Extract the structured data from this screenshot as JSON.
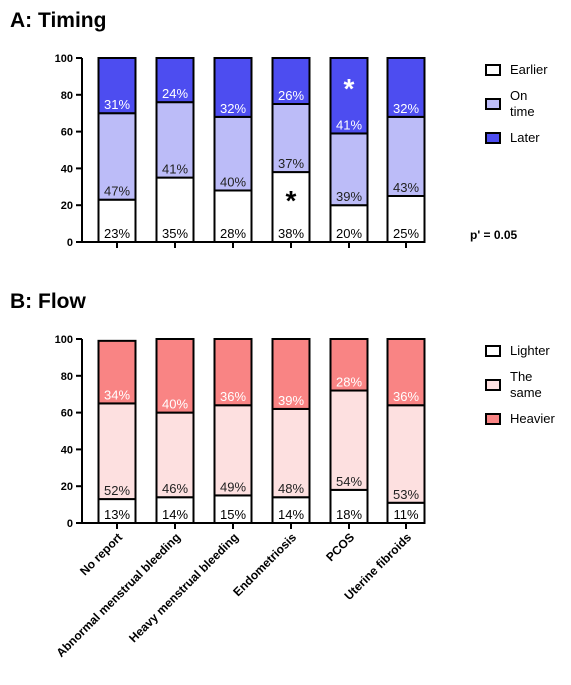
{
  "chart_data": [
    {
      "type": "bar",
      "stacked": true,
      "title": "A: Timing",
      "categories": [
        "No report",
        "Abnormal menstrual bleeding",
        "Heavy menstrual bleeding",
        "Endometriosis",
        "PCOS",
        "Uterine fibroids"
      ],
      "ylim": [
        0,
        100
      ],
      "yticks": [
        0,
        20,
        40,
        60,
        80,
        100
      ],
      "xticklabels_shown": false,
      "series": [
        {
          "name": "Earlier",
          "color": "#ffffff",
          "values": [
            23,
            35,
            28,
            38,
            20,
            25
          ],
          "labels": [
            "23%",
            "35%",
            "28%",
            "38%",
            "20%",
            "25%"
          ]
        },
        {
          "name": "On time",
          "color": "#bcbcf8",
          "values": [
            47,
            41,
            40,
            37,
            39,
            43
          ],
          "labels": [
            "47%",
            "41%",
            "40%",
            "37%",
            "39%",
            "43%"
          ]
        },
        {
          "name": "Later",
          "color": "#4d4df0",
          "values": [
            31,
            24,
            32,
            26,
            41,
            32
          ],
          "labels": [
            "31%",
            "24%",
            "32%",
            "26%",
            "41%",
            "32%"
          ]
        }
      ],
      "annotations": [
        {
          "text": "*",
          "category": "Endometriosis",
          "series": "Earlier",
          "color": "#000000"
        },
        {
          "text": "*",
          "category": "PCOS",
          "series": "Later",
          "color": "#ffffff"
        },
        {
          "text": "p' = 0.05"
        }
      ],
      "legend": {
        "placement": "right",
        "items": [
          {
            "label": [
              "Earlier"
            ],
            "color": "#ffffff"
          },
          {
            "label": [
              "On",
              "time"
            ],
            "color": "#bcbcf8"
          },
          {
            "label": [
              "Later"
            ],
            "color": "#4d4df0"
          }
        ]
      }
    },
    {
      "type": "bar",
      "stacked": true,
      "title": "B: Flow",
      "categories": [
        "No report",
        "Abnormal menstrual bleeding",
        "Heavy menstrual bleeding",
        "Endometriosis",
        "PCOS",
        "Uterine fibroids"
      ],
      "ylim": [
        0,
        100
      ],
      "yticks": [
        0,
        20,
        40,
        60,
        80,
        100
      ],
      "xticklabels_shown": true,
      "series": [
        {
          "name": "Lighter",
          "color": "#ffffff",
          "values": [
            13,
            14,
            15,
            14,
            18,
            11
          ],
          "labels": [
            "13%",
            "14%",
            "15%",
            "14%",
            "18%",
            "11%"
          ]
        },
        {
          "name": "The same",
          "color": "#fde0e0",
          "values": [
            52,
            46,
            49,
            48,
            54,
            53
          ],
          "labels": [
            "52%",
            "46%",
            "49%",
            "48%",
            "54%",
            "53%"
          ]
        },
        {
          "name": "Heavier",
          "color": "#f98484",
          "values": [
            34,
            40,
            36,
            39,
            28,
            36
          ],
          "labels": [
            "34%",
            "40%",
            "36%",
            "39%",
            "28%",
            "36%"
          ]
        }
      ],
      "legend": {
        "placement": "right",
        "items": [
          {
            "label": [
              "Lighter"
            ],
            "color": "#ffffff"
          },
          {
            "label": [
              "The",
              "same"
            ],
            "color": "#fde0e0"
          },
          {
            "label": [
              "Heavier"
            ],
            "color": "#f98484"
          }
        ]
      }
    }
  ]
}
